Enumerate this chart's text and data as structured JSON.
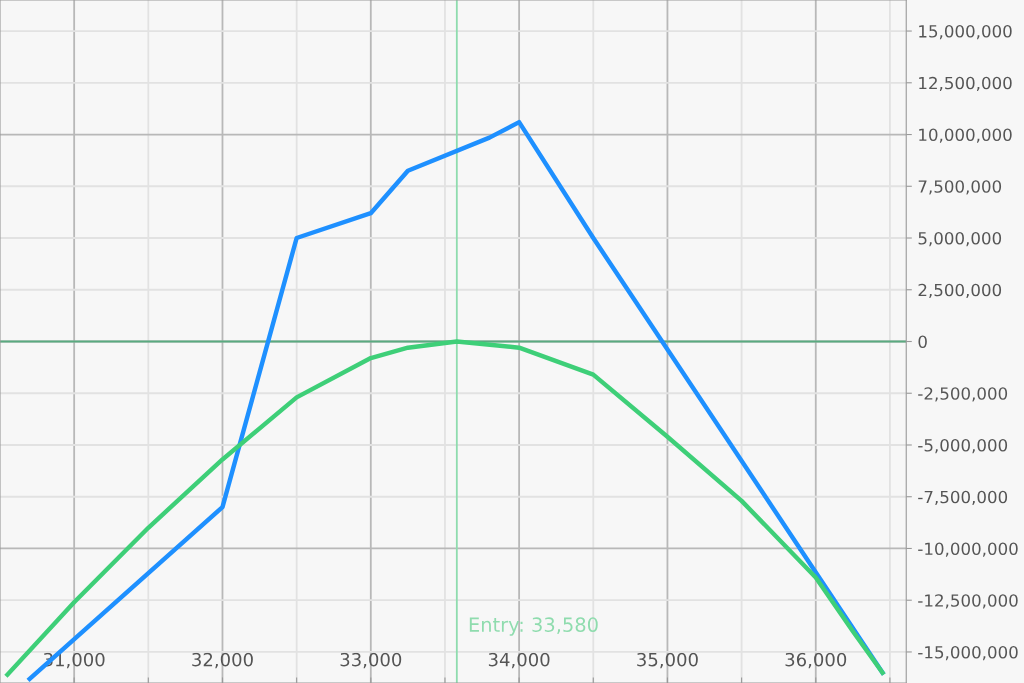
{
  "chart_data": {
    "type": "line",
    "xlim": [
      30500,
      36610
    ],
    "ylim": [
      -16500000,
      16500000
    ],
    "xticks": [
      {
        "value": 31000,
        "label": "31,000"
      },
      {
        "value": 31500,
        "label": null
      },
      {
        "value": 32000,
        "label": "32,000"
      },
      {
        "value": 32500,
        "label": null
      },
      {
        "value": 33000,
        "label": "33,000"
      },
      {
        "value": 33500,
        "label": null
      },
      {
        "value": 34000,
        "label": "34,000"
      },
      {
        "value": 34500,
        "label": null
      },
      {
        "value": 35000,
        "label": "35,000"
      },
      {
        "value": 35500,
        "label": null
      },
      {
        "value": 36000,
        "label": "36,000"
      },
      {
        "value": 36500,
        "label": null
      }
    ],
    "yticks": [
      {
        "value": -15000000,
        "label": "-15,000,000"
      },
      {
        "value": -12500000,
        "label": "-12,500,000"
      },
      {
        "value": -10000000,
        "label": "-10,000,000"
      },
      {
        "value": -7500000,
        "label": "-7,500,000"
      },
      {
        "value": -5000000,
        "label": "-5,000,000"
      },
      {
        "value": -2500000,
        "label": "-2,500,000"
      },
      0,
      {
        "value": 2500000,
        "label": "2,500,000"
      },
      {
        "value": 5000000,
        "label": "5,000,000"
      },
      {
        "value": 7500000,
        "label": "7,500,000"
      },
      {
        "value": 10000000,
        "label": "10,000,000"
      },
      {
        "value": 12500000,
        "label": "12,500,000"
      },
      {
        "value": 15000000,
        "label": "15,000,000"
      }
    ],
    "grid": true,
    "marker": "none",
    "line_style": "solid",
    "series": [
      {
        "color": "#1e90ff",
        "x": [
          30700,
          32000,
          32500,
          33000,
          33250,
          33800,
          34000,
          34500,
          36450
        ],
        "values": [
          -16300000,
          -8000000,
          5000000,
          6200000,
          8250000,
          9850000,
          10600000,
          5000000,
          -16000000
        ]
      },
      {
        "color": "#3ecf78",
        "x": [
          30550,
          31000,
          31500,
          32000,
          32500,
          33000,
          33250,
          33580,
          34000,
          34500,
          35000,
          35500,
          36000,
          36250,
          36450
        ],
        "values": [
          -16100000,
          -12600000,
          -9000000,
          -5700000,
          -2700000,
          -800000,
          -300000,
          0,
          -300000,
          -1600000,
          -4600000,
          -7700000,
          -11400000,
          -14000000,
          -16000000
        ]
      }
    ],
    "ref_lines": [
      {
        "axis": "y",
        "value": 0,
        "label": null,
        "color": "#5aaa80",
        "line_style": "solid"
      },
      {
        "axis": "x",
        "value": 33580,
        "label": "Entry: 33,580",
        "color": "#8fdcae",
        "line_style": "solid"
      }
    ]
  }
}
